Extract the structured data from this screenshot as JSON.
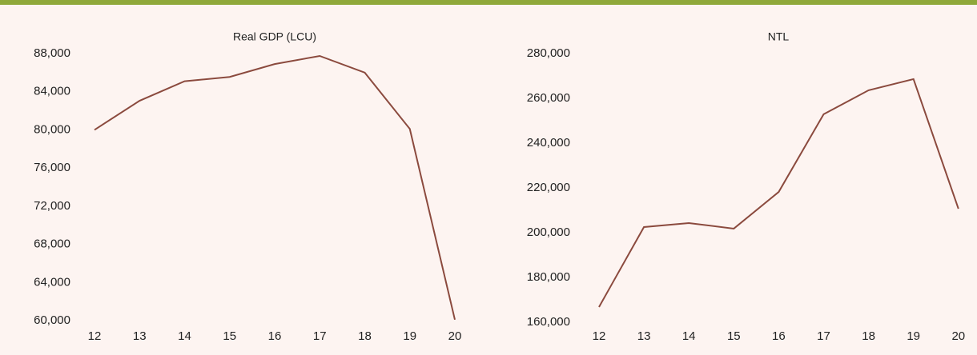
{
  "chart_data": [
    {
      "type": "line",
      "title": "Real GDP (LCU)",
      "categories": [
        "12",
        "13",
        "14",
        "15",
        "16",
        "17",
        "18",
        "19",
        "20"
      ],
      "series": [
        {
          "color": "#8b4a3e",
          "values": [
            80000,
            83050,
            85100,
            85550,
            86900,
            87750,
            86000,
            80100,
            60100
          ]
        }
      ],
      "ylim": [
        60000,
        88000
      ],
      "yticks": [
        {
          "value": 60000,
          "label": "60,000"
        },
        {
          "value": 64000,
          "label": "64,000"
        },
        {
          "value": 68000,
          "label": "68,000"
        },
        {
          "value": 72000,
          "label": "72,000"
        },
        {
          "value": 76000,
          "label": "76,000"
        },
        {
          "value": 80000,
          "label": "80,000"
        },
        {
          "value": 84000,
          "label": "84,000"
        },
        {
          "value": 88000,
          "label": "88,000"
        }
      ],
      "grid": false
    },
    {
      "type": "line",
      "title": "NTL",
      "categories": [
        "12",
        "13",
        "14",
        "15",
        "16",
        "17",
        "18",
        "19",
        "20"
      ],
      "series": [
        {
          "color": "#8b4a3e",
          "values": [
            166800,
            202500,
            204300,
            201800,
            218200,
            252900,
            263600,
            268600,
            210700
          ]
        }
      ],
      "ylim": [
        160000,
        280000
      ],
      "yticks": [
        {
          "value": 160000,
          "label": "160,000"
        },
        {
          "value": 180000,
          "label": "180,000"
        },
        {
          "value": 200000,
          "label": "200,000"
        },
        {
          "value": 220000,
          "label": "220,000"
        },
        {
          "value": 240000,
          "label": "240,000"
        },
        {
          "value": 260000,
          "label": "260,000"
        },
        {
          "value": 280000,
          "label": "280,000"
        }
      ],
      "grid": false
    }
  ]
}
